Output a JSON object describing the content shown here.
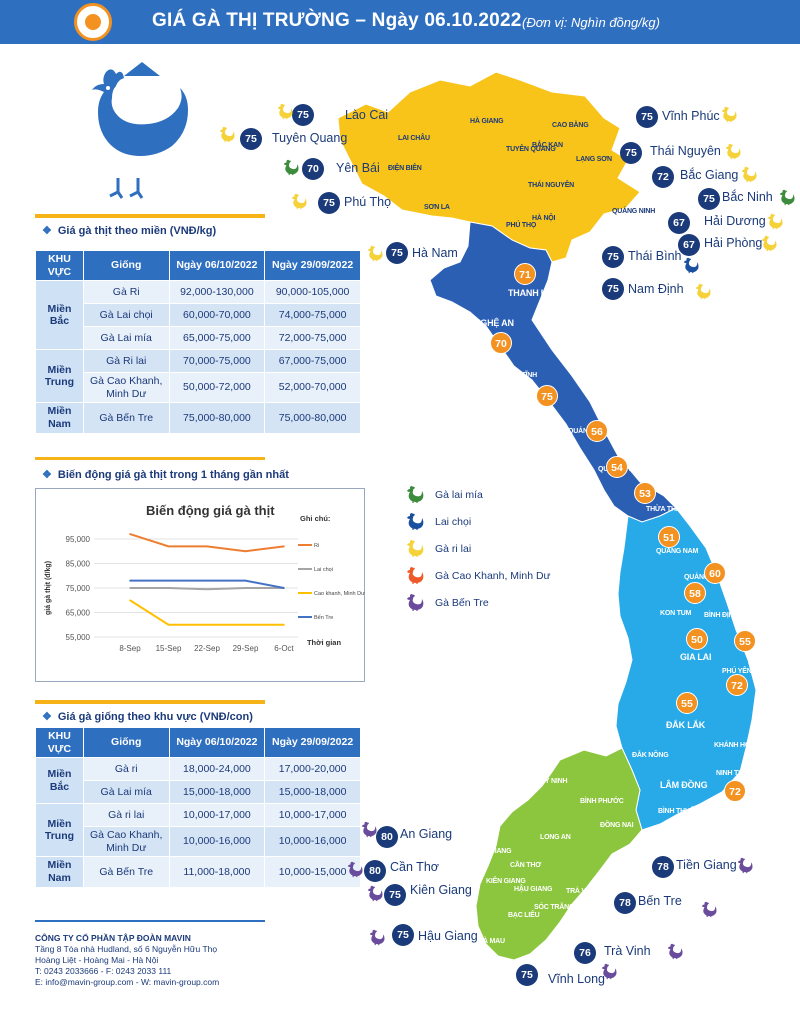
{
  "header": {
    "title": "GIÁ GÀ THỊ TRƯỜNG – Ngày 06.10.2022",
    "unit": "(Đơn vị: Nghìn đồng/kg)"
  },
  "colors": {
    "accent_blue": "#2f6fc0",
    "navy": "#1b3a7a",
    "yellow": "#f6b318",
    "orange": "#f39221",
    "north_region": "#f8c41a",
    "central_north": "#2b5fb4",
    "central_south": "#28a9e8",
    "south_region": "#8cc63f"
  },
  "meat_table": {
    "section_title": "Giá gà thịt theo miền (VNĐ/kg)",
    "headers": [
      "KHU VỰC",
      "Giống",
      "Ngày 06/10/2022",
      "Ngày 29/09/2022"
    ],
    "groups": [
      {
        "region": "Miền Bắc",
        "rows": [
          {
            "breed": "Gà Ri",
            "d1": "92,000-130,000",
            "d2": "90,000-105,000"
          },
          {
            "breed": "Gà Lai chọi",
            "d1": "60,000-70,000",
            "d2": "74,000-75,000"
          },
          {
            "breed": "Gà Lai mía",
            "d1": "65,000-75,000",
            "d2": "72,000-75,000"
          }
        ]
      },
      {
        "region": "Miền Trung",
        "rows": [
          {
            "breed": "Gà Ri lai",
            "d1": "70,000-75,000",
            "d2": "67,000-75,000"
          },
          {
            "breed": "Gà Cao Khanh, Minh Dư",
            "d1": "50,000-72,000",
            "d2": "52,000-70,000"
          }
        ]
      },
      {
        "region": "Miền Nam",
        "rows": [
          {
            "breed": "Gà Bến Tre",
            "d1": "75,000-80,000",
            "d2": "75,000-80,000"
          }
        ]
      }
    ]
  },
  "chart_section_title": "Biến động giá gà thịt trong 1 tháng gần nhất",
  "chart_data": {
    "type": "line",
    "title": "Biến động giá gà thịt",
    "xlabel": "Thời gian",
    "ylabel": "giá gà thịt (đ/kg)",
    "legend_title": "Ghi chú:",
    "legend_position": "right",
    "x": [
      "8-Sep",
      "15-Sep",
      "22-Sep",
      "29-Sep",
      "6-Oct"
    ],
    "y_ticks": [
      "95,000",
      "85,000",
      "75,000",
      "65,000",
      "55,000"
    ],
    "ylim": [
      55000,
      95000
    ],
    "grid": true,
    "series": [
      {
        "name": "Ri",
        "color": "#ed7d31",
        "values": [
          97000,
          92000,
          92000,
          90000,
          92000
        ]
      },
      {
        "name": "Lai chọi",
        "color": "#a5a5a5",
        "values": [
          75000,
          75000,
          74500,
          75000,
          75000
        ]
      },
      {
        "name": "Cao khanh, Minh Dư",
        "color": "#ffc000",
        "values": [
          70000,
          60000,
          60000,
          60000,
          60000
        ]
      },
      {
        "name": "Bến Tre",
        "color": "#4472c4",
        "values": [
          78000,
          78000,
          78000,
          78000,
          75000
        ]
      }
    ]
  },
  "breed_table": {
    "section_title": "Giá gà giống theo khu vực (VNĐ/con)",
    "headers": [
      "KHU VỰC",
      "Giống",
      "Ngày 06/10/2022",
      "Ngày 29/09/2022"
    ],
    "groups": [
      {
        "region": "Miền Bắc",
        "rows": [
          {
            "breed": "Gà ri",
            "d1": "18,000-24,000",
            "d2": "17,000-20,000"
          },
          {
            "breed": "Gà Lai mía",
            "d1": "15,000-18,000",
            "d2": "15,000-18,000"
          }
        ]
      },
      {
        "region": "Miền Trung",
        "rows": [
          {
            "breed": "Gà ri lai",
            "d1": "10,000-17,000",
            "d2": "10,000-17,000"
          },
          {
            "breed": "Gà Cao Khanh, Minh Dư",
            "d1": "10,000-16,000",
            "d2": "10,000-16,000"
          }
        ]
      },
      {
        "region": "Miền Nam",
        "rows": [
          {
            "breed": "Gà Bến Tre",
            "d1": "11,000-18,000",
            "d2": "10,000-15,000"
          }
        ]
      }
    ]
  },
  "map_legend": [
    {
      "label": "Gà lai mía",
      "icon": "chicken-icon",
      "color": "#3d8b3d"
    },
    {
      "label": "Lai chọi",
      "icon": "chicken-icon",
      "color": "#1b4fa0"
    },
    {
      "label": "Gà ri lai",
      "icon": "chicken-icon",
      "color": "#f6d23a"
    },
    {
      "label": "Gà Cao Khanh, Minh Dư",
      "icon": "chicken-icon",
      "color": "#f05a28"
    },
    {
      "label": "Gà Bến Tre",
      "icon": "chicken-icon",
      "color": "#6a4c9c"
    }
  ],
  "provinces": [
    {
      "name": "Lào Cai",
      "price": "75"
    },
    {
      "name": "Tuyên Quang",
      "price": "75"
    },
    {
      "name": "Yên Bái",
      "price": "70"
    },
    {
      "name": "Phú Thọ",
      "price": "75"
    },
    {
      "name": "Hà Nam",
      "price": "75"
    },
    {
      "name": "Vĩnh Phúc",
      "price": "75"
    },
    {
      "name": "Thái Nguyên",
      "price": "75"
    },
    {
      "name": "Bắc Giang",
      "price": "72"
    },
    {
      "name": "Bắc Ninh",
      "price": "75"
    },
    {
      "name": "Hải Dương",
      "price": "67"
    },
    {
      "name": "Hải Phòng",
      "price": "67"
    },
    {
      "name": "Thái Bình",
      "price": "75"
    },
    {
      "name": "Nam Định",
      "price": "75"
    },
    {
      "name": "An Giang",
      "price": "80"
    },
    {
      "name": "Cần Thơ",
      "price": "80"
    },
    {
      "name": "Kiên Giang",
      "price": "75"
    },
    {
      "name": "Hậu Giang",
      "price": "75"
    },
    {
      "name": "Tiền Giang",
      "price": "78"
    },
    {
      "name": "Bến Tre",
      "price": "78"
    },
    {
      "name": "Trà Vinh",
      "price": "76"
    },
    {
      "name": "Vĩnh Long",
      "price": "75"
    }
  ],
  "map_badges": [
    "71",
    "70",
    "75",
    "56",
    "54",
    "53",
    "51",
    "60",
    "58",
    "50",
    "55",
    "72",
    "55",
    "72"
  ],
  "map_labels": {
    "north": [
      "HÀ GIANG",
      "CAO BẰNG",
      "LAI CHÂU",
      "TUYÊN QUANG",
      "BẮC KẠN",
      "LẠNG SƠN",
      "ĐIỆN BIÊN",
      "THÁI NGUYÊN",
      "SƠN LA",
      "QUẢNG NINH",
      "HÀ NỘI",
      "PHÚ THỌ"
    ],
    "central": [
      "THANH HÓA",
      "NGHỆ AN",
      "HÀ TĨNH",
      "QUẢNG BÌNH",
      "QUẢNG TRỊ",
      "THỪA THIÊN HUẾ",
      "QUẢNG NAM",
      "QUẢNG NGÃI",
      "KON TUM",
      "BÌNH ĐỊNH",
      "GIA LAI",
      "PHÚ YÊN",
      "ĐẮK LẮK",
      "KHÁNH HÒA",
      "ĐẮK NÔNG",
      "LÂM ĐỒNG",
      "NINH THUẬN",
      "BÌNH THUẬN"
    ],
    "south": [
      "TÂY NINH",
      "BÌNH PHƯỚC",
      "ĐỒNG NAI",
      "LONG AN",
      "AN GIANG",
      "CẦN THƠ",
      "KIÊN GIANG",
      "HẬU GIANG",
      "TRÀ VINH",
      "SÓC TRĂNG",
      "BẠC LIÊU",
      "CÀ MAU"
    ]
  },
  "footer": {
    "company": "CÔNG TY CỔ PHẦN TẬP ĐOÀN MAVIN",
    "address1": "Tầng 8 Tòa nhà Hudland, số 6 Nguyễn Hữu Thọ",
    "address2": "Hoàng Liệt - Hoàng Mai - Hà Nội",
    "phone": "T: 0243 2033666 - F: 0243 2033 111",
    "web": "E: info@mavin-group.com - W: mavin-group.com"
  }
}
